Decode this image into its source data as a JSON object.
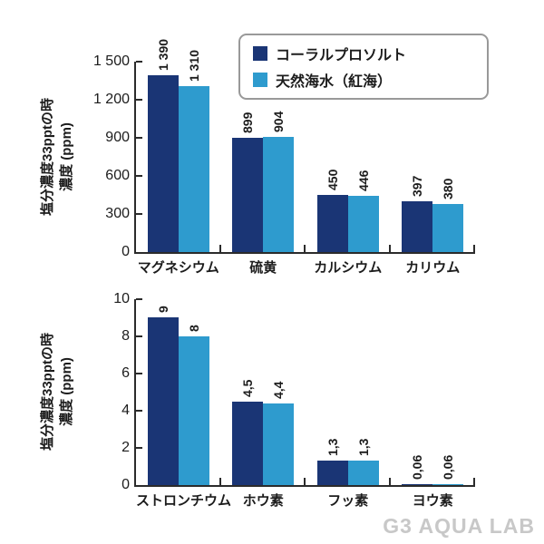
{
  "watermark": "G3 AQUA LAB",
  "colors": {
    "series1": "#1a3575",
    "series2": "#2e9bce",
    "axis": "#2b2b2b",
    "legend_border": "#999999",
    "watermark": "#c8c8c8"
  },
  "legend": {
    "position": "top-right",
    "items": [
      {
        "key": "coral-pro-salt",
        "label": "コーラルプロソルト",
        "color": "#1a3575"
      },
      {
        "key": "natural-seawater-red-sea",
        "label": "天然海水（紅海）",
        "color": "#2e9bce"
      }
    ]
  },
  "chart_data": [
    {
      "type": "bar",
      "title": "",
      "categories": [
        "マグネシウム",
        "硫黄",
        "カルシウム",
        "カリウム"
      ],
      "series": [
        {
          "name": "コーラルプロソルト",
          "color": "#1a3575",
          "values": [
            1390,
            899,
            450,
            397
          ],
          "labels": [
            "1 390",
            "899",
            "450",
            "397"
          ]
        },
        {
          "name": "天然海水（紅海）",
          "color": "#2e9bce",
          "values": [
            1310,
            904,
            446,
            380
          ],
          "labels": [
            "1 310",
            "904",
            "446",
            "380"
          ]
        }
      ],
      "ylabel_line1": "塩分濃度33pptの時",
      "ylabel_line2": "濃度 (ppm)",
      "xlabel": "",
      "ylim": [
        0,
        1500
      ],
      "yticks": [
        0,
        300,
        600,
        900,
        1200,
        1500
      ],
      "ytick_labels": [
        "0",
        "300",
        "600",
        "900",
        "1 200",
        "1 500"
      ],
      "grid": false,
      "legend_position": "top-right"
    },
    {
      "type": "bar",
      "title": "",
      "categories": [
        "ストロンチウム",
        "ホウ素",
        "フッ素",
        "ヨウ素"
      ],
      "series": [
        {
          "name": "コーラルプロソルト",
          "color": "#1a3575",
          "values": [
            9,
            4.5,
            1.3,
            0.06
          ],
          "labels": [
            "9",
            "4,5",
            "1,3",
            "0,06"
          ]
        },
        {
          "name": "天然海水（紅海）",
          "color": "#2e9bce",
          "values": [
            8,
            4.4,
            1.3,
            0.06
          ],
          "labels": [
            "8",
            "4,4",
            "1,3",
            "0,06"
          ]
        }
      ],
      "ylabel_line1": "塩分濃度33pptの時",
      "ylabel_line2": "濃度 (ppm)",
      "xlabel": "",
      "ylim": [
        0,
        10
      ],
      "yticks": [
        0,
        2,
        4,
        6,
        8,
        10
      ],
      "ytick_labels": [
        "0",
        "2",
        "4",
        "6",
        "8",
        "10"
      ],
      "grid": false,
      "legend_position": "none"
    }
  ]
}
